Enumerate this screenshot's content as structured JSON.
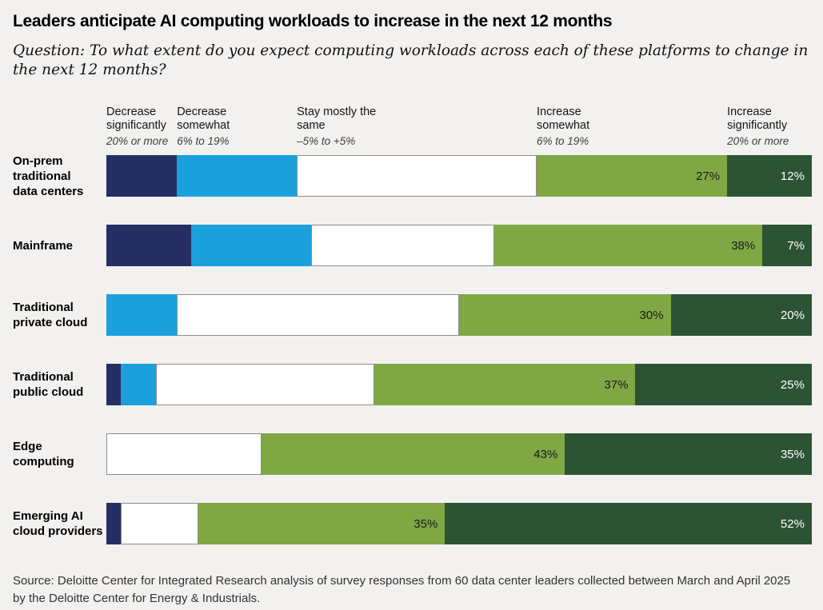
{
  "title": "Leaders anticipate AI computing workloads to increase in the next 12 months",
  "subtitle": "Question: To what extent do you expect computing workloads across each of these platforms to change in the next 12 months?",
  "source": {
    "line1": "Source: Deloitte Center for Integrated Research analysis of survey responses from 60 data center leaders collected between March and April 2025",
    "line2": "by the Deloitte Center for Energy & Industrials."
  },
  "colors": {
    "background": "#f2f1ef",
    "segments": [
      "#252f63",
      "#1ba0dc",
      "#ffffff",
      "#7fa844",
      "#2d5335"
    ],
    "segment_label_colors": [
      null,
      null,
      null,
      "#1a1a1a",
      "#ffffff"
    ],
    "white_segment_border": "#8c8c8c"
  },
  "legend_headers": [
    {
      "label": "Decrease significantly",
      "range": "20% or more"
    },
    {
      "label": "Decrease somewhat",
      "range": "6% to 19%"
    },
    {
      "label": "Stay mostly the same",
      "range": "–5% to +5%"
    },
    {
      "label": "Increase somewhat",
      "range": "6% to 19%"
    },
    {
      "label": "Increase significantly",
      "range": "20% or more"
    }
  ],
  "chart_data": {
    "type": "bar",
    "stacked": true,
    "orientation": "horizontal",
    "value_unit": "percent",
    "axis_range": [
      0,
      100
    ],
    "grid": false,
    "legend_position": "top",
    "segment_keys": [
      "decrease-significantly",
      "decrease-somewhat",
      "stay-mostly-the-same",
      "increase-somewhat",
      "increase-significantly"
    ],
    "series_names": [
      "Decrease significantly (20% or more)",
      "Decrease somewhat (6% to 19%)",
      "Stay mostly the same (–5% to +5%)",
      "Increase somewhat (6% to 19%)",
      "Increase significantly (20% or more)"
    ],
    "categories": [
      "On-prem traditional data centers",
      "Mainframe",
      "Traditional private cloud",
      "Traditional public cloud",
      "Edge computing",
      "Emerging AI cloud providers"
    ],
    "note": "Only the two green segments carry printed value labels; other segment values are estimated from bar widths.",
    "rows": [
      {
        "category": "On-prem traditional data centers",
        "label_lines": [
          "On-prem",
          "traditional",
          "data centers"
        ],
        "values": [
          10,
          17,
          34,
          27,
          12
        ],
        "labels": [
          null,
          null,
          null,
          "27%",
          "12%"
        ]
      },
      {
        "category": "Mainframe",
        "label_lines": [
          "Mainframe"
        ],
        "values": [
          12,
          17,
          26,
          38,
          7
        ],
        "labels": [
          null,
          null,
          null,
          "38%",
          "7%"
        ]
      },
      {
        "category": "Traditional private cloud",
        "label_lines": [
          "Traditional",
          "private cloud"
        ],
        "values": [
          0,
          10,
          40,
          30,
          20
        ],
        "labels": [
          null,
          null,
          null,
          "30%",
          "20%"
        ]
      },
      {
        "category": "Traditional public cloud",
        "label_lines": [
          "Traditional",
          "public cloud"
        ],
        "values": [
          2,
          5,
          31,
          37,
          25
        ],
        "labels": [
          null,
          null,
          null,
          "37%",
          "25%"
        ]
      },
      {
        "category": "Edge computing",
        "label_lines": [
          "Edge",
          "computing"
        ],
        "values": [
          0,
          0,
          22,
          43,
          35
        ],
        "labels": [
          null,
          null,
          null,
          "43%",
          "35%"
        ]
      },
      {
        "category": "Emerging AI cloud providers",
        "label_lines": [
          "Emerging AI",
          "cloud providers"
        ],
        "values": [
          2,
          0,
          11,
          35,
          52
        ],
        "labels": [
          null,
          null,
          null,
          "35%",
          "52%"
        ]
      }
    ]
  }
}
